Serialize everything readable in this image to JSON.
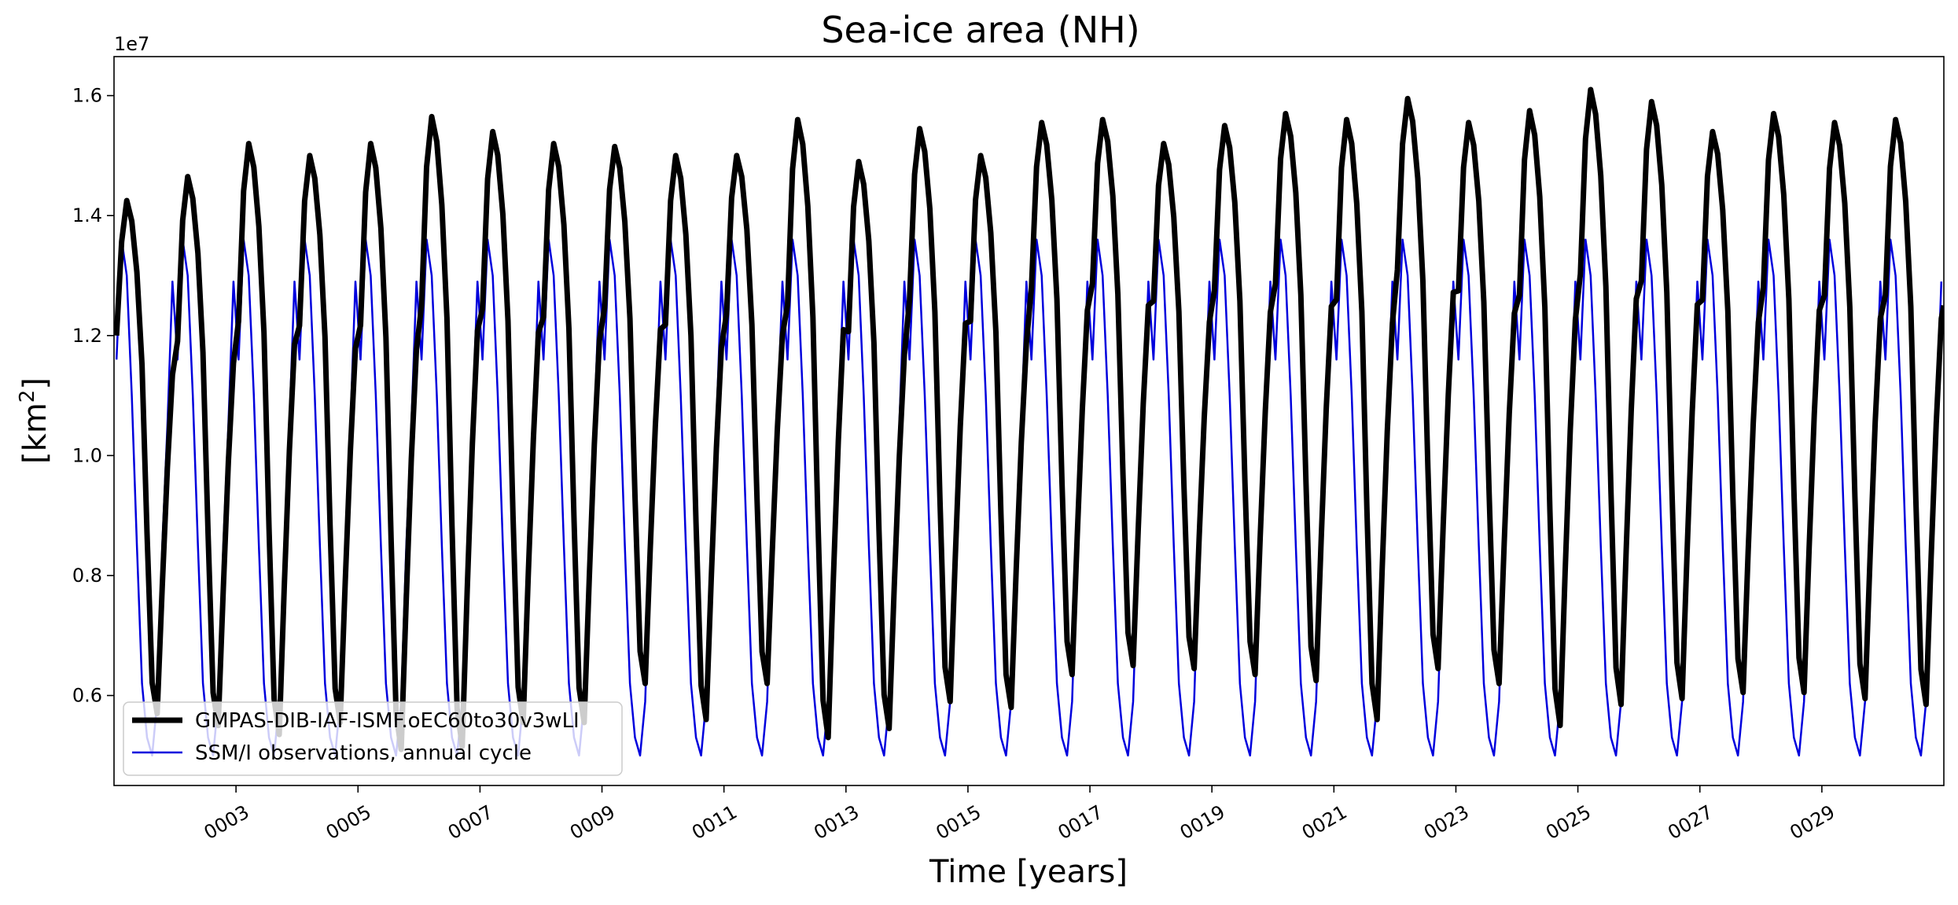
{
  "chart_data": {
    "type": "line",
    "title": "Sea-ice area (NH)",
    "xlabel": "Time [years]",
    "ylabel_base": "[km",
    "ylabel_sup": "2",
    "ylabel_close": "]",
    "y_offset_label": "1e7",
    "y_scale": 10000000,
    "xlim": [
      1.0,
      31.0
    ],
    "ylim": [
      0.45,
      1.665
    ],
    "y_ticks": [
      0.6,
      0.8,
      1.0,
      1.2,
      1.4,
      1.6
    ],
    "y_tick_labels": [
      "0.6",
      "0.8",
      "1.0",
      "1.2",
      "1.4",
      "1.6"
    ],
    "x_ticks": [
      3,
      5,
      7,
      9,
      11,
      13,
      15,
      17,
      19,
      21,
      23,
      25,
      27,
      29
    ],
    "x_tick_labels": [
      "0003",
      "0005",
      "0007",
      "0009",
      "0011",
      "0013",
      "0015",
      "0017",
      "0019",
      "0021",
      "0023",
      "0025",
      "0027",
      "0029"
    ],
    "legend_position": "lower-left",
    "grid": false,
    "model_first_point": 1.2,
    "model_last_point": 1.25,
    "series": [
      {
        "name": "GMPAS-DIB-IAF-ISMF.oEC60to30v3wLI",
        "color": "#000000",
        "style": "thick",
        "annual_max": [
          1.425,
          1.465,
          1.52,
          1.5,
          1.52,
          1.565,
          1.54,
          1.52,
          1.515,
          1.5,
          1.5,
          1.56,
          1.49,
          1.545,
          1.5,
          1.555,
          1.56,
          1.52,
          1.55,
          1.57,
          1.56,
          1.595,
          1.555,
          1.575,
          1.61,
          1.59,
          1.54,
          1.57,
          1.555,
          1.56
        ],
        "annual_min": [
          0.57,
          0.55,
          0.535,
          0.555,
          0.51,
          0.515,
          0.555,
          0.555,
          0.62,
          0.56,
          0.62,
          0.53,
          0.545,
          0.59,
          0.58,
          0.635,
          0.65,
          0.645,
          0.635,
          0.625,
          0.56,
          0.645,
          0.62,
          0.55,
          0.585,
          0.595,
          0.605,
          0.605,
          0.595,
          0.585
        ]
      },
      {
        "name": "SSM/I observations, annual cycle",
        "color": "#0000dd",
        "style": "thin",
        "annual_cycle": [
          1.16,
          1.36,
          1.3,
          1.1,
          0.85,
          0.62,
          0.53,
          0.5,
          0.59,
          0.85,
          1.05,
          1.29
        ]
      }
    ]
  }
}
